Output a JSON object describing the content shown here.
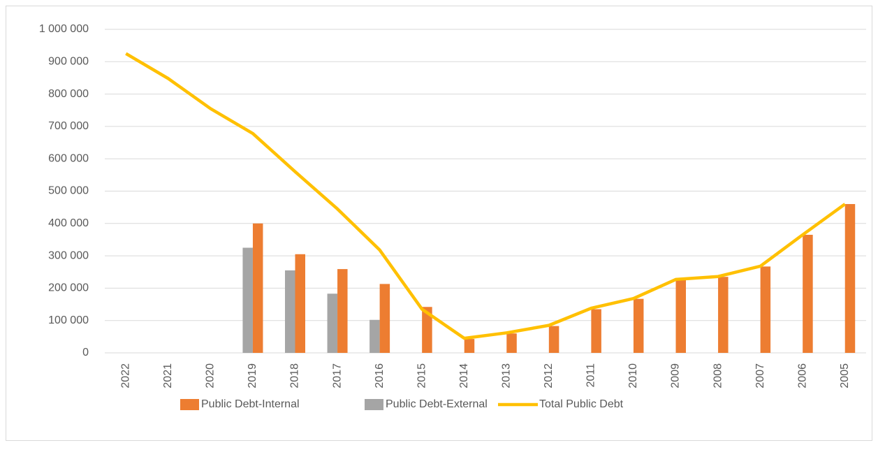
{
  "chart_data": {
    "type": "bar",
    "categories": [
      "2022",
      "2021",
      "2020",
      "2019",
      "2018",
      "2017",
      "2016",
      "2015",
      "2014",
      "2013",
      "2012",
      "2011",
      "2010",
      "2009",
      "2008",
      "2007",
      "2006",
      "2005"
    ],
    "series": [
      {
        "name": "Public Debt-Internal",
        "color": "#ed7d31",
        "type": "bar",
        "values": [
          null,
          null,
          null,
          400000,
          305000,
          259000,
          213000,
          142000,
          43000,
          60000,
          83000,
          135000,
          167000,
          225000,
          235000,
          267000,
          365000,
          460000
        ]
      },
      {
        "name": "Public Debt-External",
        "color": "#a5a5a5",
        "type": "bar",
        "values": [
          null,
          null,
          null,
          325000,
          255000,
          183000,
          102000,
          null,
          null,
          null,
          null,
          null,
          null,
          null,
          null,
          null,
          null,
          null
        ]
      },
      {
        "name": "Total Public Debt",
        "color": "#ffc000",
        "type": "line",
        "values": [
          925000,
          848000,
          755000,
          678000,
          560000,
          445000,
          318000,
          135000,
          45000,
          62000,
          85000,
          138000,
          168000,
          227000,
          236000,
          268000,
          365000,
          460000
        ]
      }
    ],
    "ylim": [
      0,
      1000000
    ],
    "yticks": [
      0,
      {
        "value": 100000,
        "label": "100 000"
      },
      {
        "value": 200000,
        "label": "200 000"
      },
      {
        "value": 300000,
        "label": "300 000"
      },
      {
        "value": 400000,
        "label": "400 000"
      },
      {
        "value": 500000,
        "label": "500 000"
      },
      {
        "value": 600000,
        "label": "600 000"
      },
      {
        "value": 700000,
        "label": "700 000"
      },
      {
        "value": 800000,
        "label": "800 000"
      },
      {
        "value": 900000,
        "label": "900 000"
      },
      {
        "value": 1000000,
        "label": "1 000 000"
      }
    ],
    "grid": true,
    "legend": "bottom"
  }
}
